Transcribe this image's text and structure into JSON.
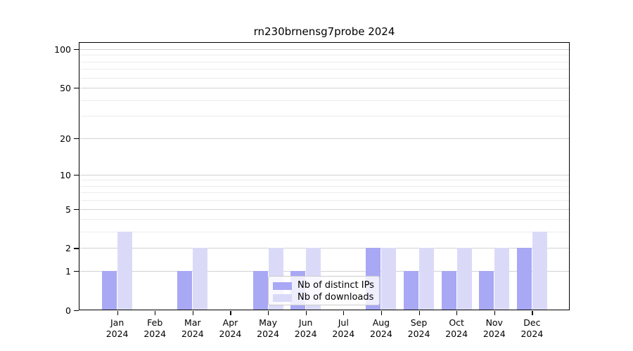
{
  "title": "rn230brnensg7probe 2024",
  "colors": {
    "distinct_ips_bar": "#a8a8f5",
    "downloads_bar": "#dadaf8",
    "major_gridline": "#d2d2d2",
    "minor_gridline": "#ececec",
    "axis": "#000000",
    "background": "#ffffff",
    "legend_border": "#cccccc"
  },
  "y_axis": {
    "tick_labels": [
      "0",
      "1",
      "2",
      "5",
      "10",
      "20",
      "50",
      "100"
    ]
  },
  "x_axis": {
    "month_labels": [
      "Jan",
      "Feb",
      "Mar",
      "Apr",
      "May",
      "Jun",
      "Jul",
      "Aug",
      "Sep",
      "Oct",
      "Nov",
      "Dec"
    ],
    "year_label": "2024"
  },
  "chart_data": {
    "type": "bar",
    "title": "rn230brnensg7probe 2024",
    "xlabel": "",
    "ylabel": "",
    "categories": [
      "Jan 2024",
      "Feb 2024",
      "Mar 2024",
      "Apr 2024",
      "May 2024",
      "Jun 2024",
      "Jul 2024",
      "Aug 2024",
      "Sep 2024",
      "Oct 2024",
      "Nov 2024",
      "Dec 2024"
    ],
    "series": [
      {
        "name": "Nb of distinct IPs",
        "color": "#a8a8f5",
        "values": [
          1,
          0,
          1,
          0,
          1,
          1,
          0,
          2,
          1,
          1,
          1,
          2
        ]
      },
      {
        "name": "Nb of downloads",
        "color": "#dadaf8",
        "values": [
          3,
          0,
          2,
          0,
          2,
          2,
          0,
          2,
          2,
          2,
          2,
          3
        ]
      }
    ],
    "y_scale": "log1p",
    "y_ticks": [
      0,
      1,
      2,
      5,
      10,
      20,
      50,
      100
    ],
    "y_minor_gridlines": [
      3,
      4,
      6,
      7,
      8,
      9,
      30,
      40,
      60,
      70,
      80,
      90
    ],
    "ylim": [
      0,
      113
    ],
    "grid": true,
    "legend_position": "inside-bottom-center"
  }
}
